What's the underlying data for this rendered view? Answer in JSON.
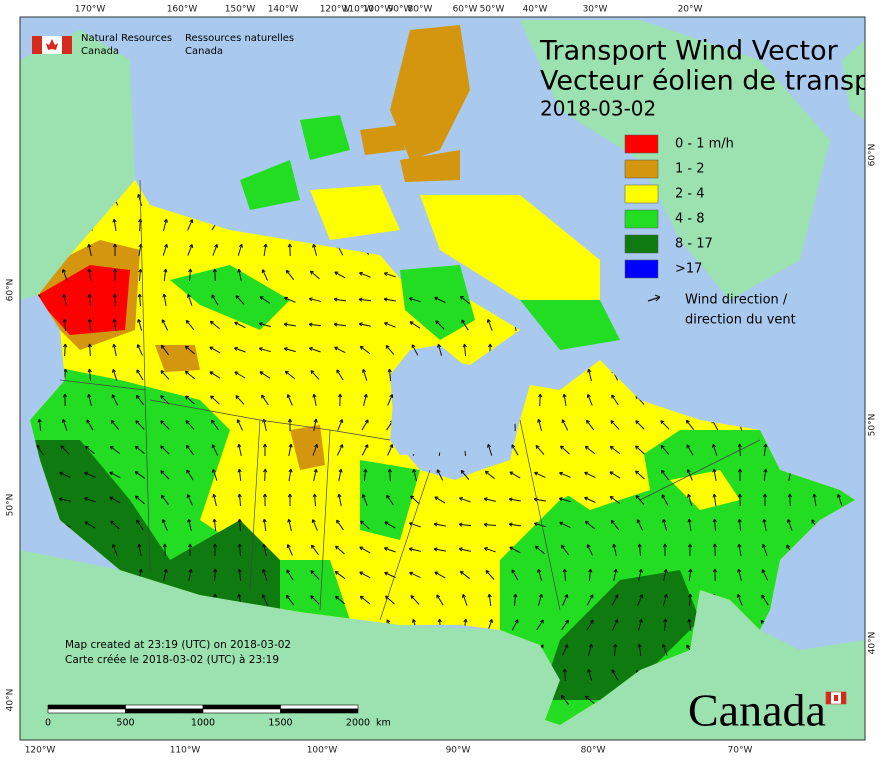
{
  "header": {
    "agency_en": "Natural Resources",
    "agency_en2": "Canada",
    "agency_fr": "Ressources naturelles",
    "agency_fr2": "Canada"
  },
  "title": {
    "line1": "Transport Wind Vector",
    "line2": "Vecteur éolien de transp",
    "date": "2018-03-02"
  },
  "legend": {
    "items": [
      {
        "label": "0 - 1 m/h",
        "color": "#ff0000"
      },
      {
        "label": "1 - 2",
        "color": "#d4950f"
      },
      {
        "label": "2 - 4",
        "color": "#ffff00"
      },
      {
        "label": "4 - 8",
        "color": "#22dd22"
      },
      {
        "label": "8 - 17",
        "color": "#0f7a0f"
      },
      {
        "label": ">17",
        "color": "#0000ff"
      }
    ],
    "arrow_label": [
      "Wind direction /",
      "direction du vent"
    ]
  },
  "graticule": {
    "top": [
      "170°W",
      "160°W",
      "150°W",
      "140°W",
      "120°W",
      "110°W",
      "100°W",
      "90°W",
      "80°W",
      "60°W",
      "50°W",
      "40°W",
      "30°W",
      "20°W"
    ],
    "bottom": [
      "120°W",
      "110°W",
      "100°W",
      "90°W",
      "80°W",
      "70°W"
    ],
    "left": [
      "60°N",
      "50°N",
      "40°N"
    ],
    "right": [
      "60°N",
      "50°N",
      "40°N"
    ]
  },
  "credits": [
    "Map created at 23:19 (UTC) on 2018-03-02",
    "Carte créée le 2018-03-02 (UTC) à 23:19"
  ],
  "scale_bar": {
    "labels": [
      "0",
      "500",
      "1000",
      "1500",
      "2000"
    ],
    "unit": "km"
  },
  "wordmark": "Canada"
}
